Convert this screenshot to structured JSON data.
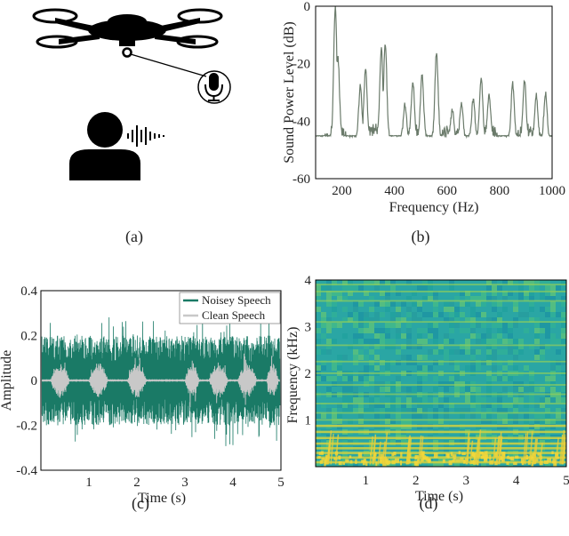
{
  "panels": {
    "a": {
      "caption": "(a)"
    },
    "b": {
      "caption": "(b)"
    },
    "c": {
      "caption": "(c)"
    },
    "d": {
      "caption": "(d)"
    }
  },
  "colors": {
    "drone": "#000000",
    "spectrum_line": "#6b7b6b",
    "noisy_speech": "#1a7a66",
    "clean_speech": "#c8c8c8",
    "spec_bg": "#2aa6a4",
    "spec_hot": "#f2d73a"
  },
  "chart_data": [
    {
      "type": "line",
      "panel": "b",
      "xlabel": "Frequency (Hz)",
      "ylabel": "Sound Power Level (dB)",
      "xlim": [
        100,
        1000
      ],
      "ylim": [
        -60,
        0
      ],
      "xticks": [
        "200",
        "400",
        "600",
        "800",
        "1000"
      ],
      "yticks": [
        "0",
        "-20",
        "-40",
        "-60"
      ],
      "grid": false,
      "baseline_db": -46,
      "peaks": [
        {
          "f": 175,
          "db": 0
        },
        {
          "f": 185,
          "db": -18
        },
        {
          "f": 270,
          "db": -28
        },
        {
          "f": 290,
          "db": -22
        },
        {
          "f": 350,
          "db": -15
        },
        {
          "f": 365,
          "db": -13
        },
        {
          "f": 440,
          "db": -34
        },
        {
          "f": 470,
          "db": -26
        },
        {
          "f": 505,
          "db": -24
        },
        {
          "f": 560,
          "db": -16
        },
        {
          "f": 620,
          "db": -36
        },
        {
          "f": 655,
          "db": -34
        },
        {
          "f": 700,
          "db": -32
        },
        {
          "f": 730,
          "db": -25
        },
        {
          "f": 760,
          "db": -31
        },
        {
          "f": 850,
          "db": -27
        },
        {
          "f": 895,
          "db": -26
        },
        {
          "f": 940,
          "db": -31
        },
        {
          "f": 975,
          "db": -30
        }
      ]
    },
    {
      "type": "line",
      "panel": "c",
      "xlabel": "Time (s)",
      "ylabel": "Amplitude",
      "xlim": [
        0,
        5
      ],
      "ylim": [
        -0.4,
        0.4
      ],
      "xticks": [
        "1",
        "2",
        "3",
        "4",
        "5"
      ],
      "yticks": [
        "0.4",
        "0.2",
        "0",
        "-0.2",
        "-0.4"
      ],
      "grid": false,
      "legend_placement": "top-right",
      "series": [
        {
          "name": "Noisey Speech",
          "envelope_amplitude": 0.2,
          "peak_amplitude": 0.34
        },
        {
          "name": "Clean Speech",
          "envelope_amplitude": 0.08,
          "peak_amplitude": 0.12
        }
      ],
      "speech_segments_s": [
        [
          0.2,
          0.6
        ],
        [
          1.0,
          1.4
        ],
        [
          1.8,
          2.2
        ],
        [
          3.0,
          3.3
        ],
        [
          3.5,
          3.9
        ],
        [
          4.1,
          4.5
        ],
        [
          4.7,
          4.95
        ]
      ]
    },
    {
      "type": "heatmap",
      "panel": "d",
      "xlabel": "Time (s)",
      "ylabel": "Frequency (kHz)",
      "xlim": [
        0,
        5
      ],
      "ylim": [
        0,
        4
      ],
      "xticks": [
        "1",
        "2",
        "3",
        "4",
        "5"
      ],
      "yticks": [
        "1",
        "2",
        "3",
        "4"
      ],
      "harmonic_bands_khz": [
        0.1,
        0.2,
        0.3,
        0.4,
        0.5,
        0.62,
        0.75,
        0.88,
        1.0,
        1.15,
        1.35,
        1.55,
        1.75,
        2.0,
        2.25,
        2.6,
        3.1,
        3.55,
        3.75,
        3.9
      ]
    }
  ]
}
